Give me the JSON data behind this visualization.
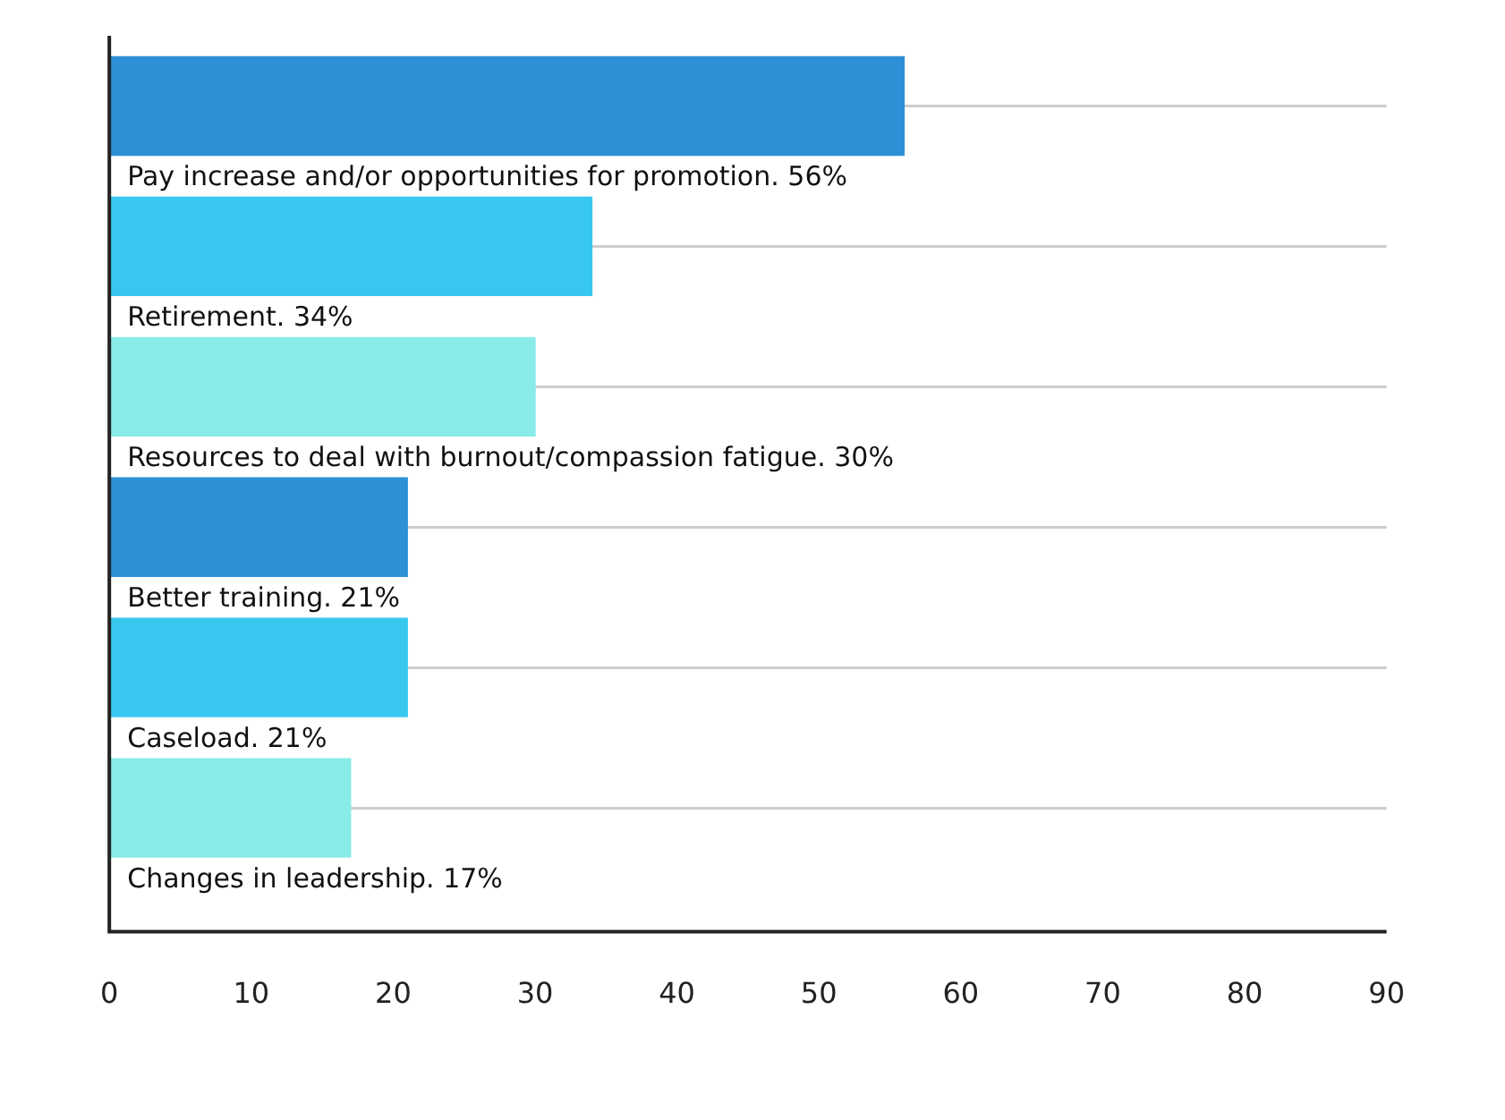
{
  "chart_data": {
    "type": "bar",
    "orientation": "horizontal",
    "categories": [
      "Pay increase and/or opportunities for promotion. 56%",
      "Retirement. 34%",
      "Resources to deal with burnout/compassion fatigue. 30%",
      "Better training. 21%",
      "Caseload. 21%",
      "Changes in leadership. 17%"
    ],
    "values": [
      56,
      34,
      30,
      21,
      21,
      17
    ],
    "colors": [
      "#2d8fd6",
      "#38c8ef",
      "#88ebe7",
      "#2d8fd6",
      "#38c8ef",
      "#88ebe7"
    ],
    "xlim": [
      0,
      90
    ],
    "xticks": [
      0,
      10,
      20,
      30,
      40,
      50,
      60,
      70,
      80,
      90
    ],
    "grid": "y",
    "legend": false
  }
}
